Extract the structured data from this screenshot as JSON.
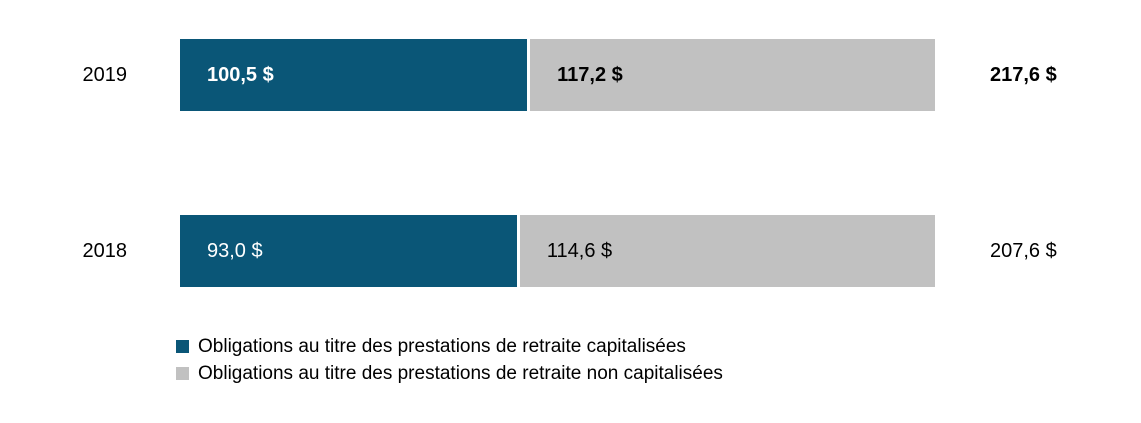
{
  "chart_data": {
    "type": "bar",
    "orientation": "horizontal",
    "stacked": true,
    "unit": "$ (dollars)",
    "categories": [
      "2019",
      "2018"
    ],
    "series": [
      {
        "name": "Obligations au titre des prestations de retraite capitalisées",
        "color": "#0a5677",
        "values": [
          100.5,
          93.0
        ]
      },
      {
        "name": "Obligations au titre des prestations de retraite non capitalisées",
        "color": "#c1c1c1",
        "values": [
          117.2,
          114.6
        ]
      }
    ],
    "totals": [
      217.6,
      207.6
    ],
    "legend_position": "bottom-left",
    "grid": false,
    "rows": [
      {
        "year": "2019",
        "funded_value": 100.5,
        "unfunded_value": 117.2,
        "total_value": 217.6,
        "funded_label": "100,5 $",
        "unfunded_label": "117,2 $",
        "total_label": "217,6 $",
        "bold": true
      },
      {
        "year": "2018",
        "funded_value": 93.0,
        "unfunded_value": 114.6,
        "total_value": 207.6,
        "funded_label": "93,0 $",
        "unfunded_label": "114,6 $",
        "total_label": "207,6 $",
        "bold": false
      }
    ],
    "legend": [
      {
        "label": "Obligations au titre des prestations de retraite capitalisées",
        "color": "#0a5677"
      },
      {
        "label": "Obligations au titre des prestations de retraite non capitalisées",
        "color": "#c1c1c1"
      }
    ]
  },
  "colors": {
    "funded_segment": "#0a5677",
    "unfunded_segment": "#c1c1c1",
    "funded_value_text": "#ffffff",
    "unfunded_value_text": "#000000",
    "axis_text": "#000000",
    "background": "#ffffff"
  }
}
